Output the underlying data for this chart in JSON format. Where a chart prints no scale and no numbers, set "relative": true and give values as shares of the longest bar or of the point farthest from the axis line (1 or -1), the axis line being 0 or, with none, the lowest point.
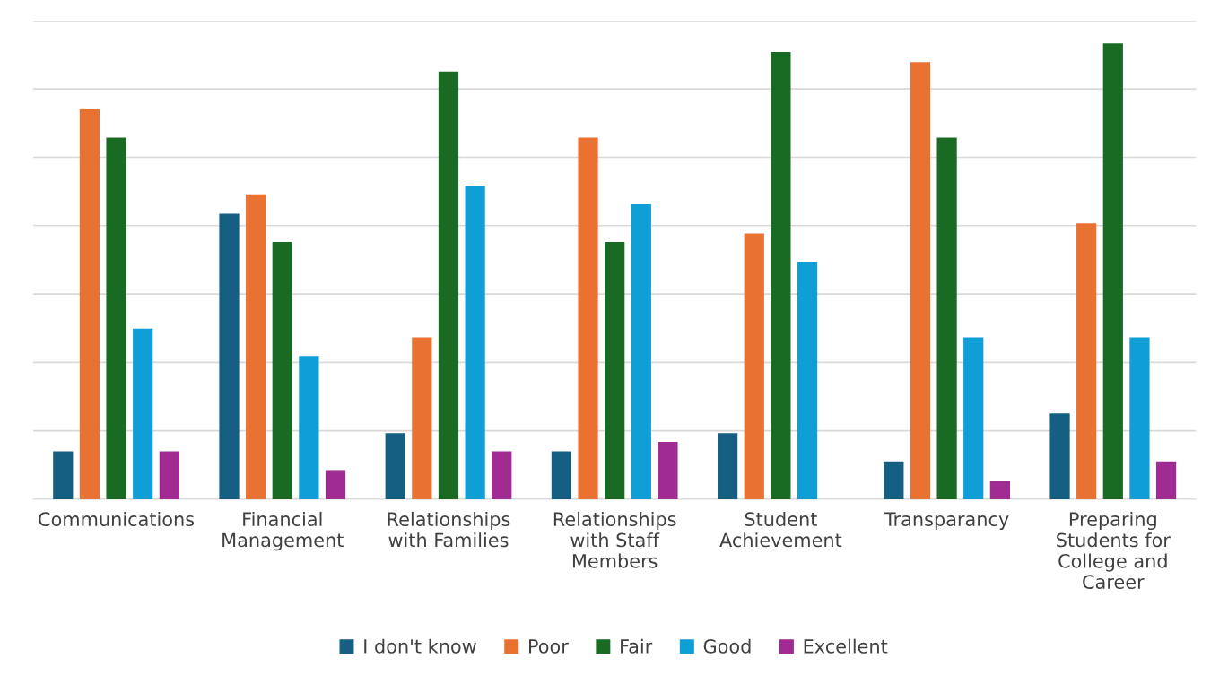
{
  "chart_data": {
    "type": "bar",
    "relative": true,
    "grid": "y",
    "legend": "bottom",
    "categories": [
      "Communications",
      "Financial Management",
      "Relationships with Families",
      "Relationships with Staff Members",
      "Student Achievement",
      "Transparancy",
      "Preparing Students for College and Career"
    ],
    "series": [
      {
        "name": "I don't know",
        "color": "#156082",
        "values": [
          0.105,
          0.626,
          0.145,
          0.105,
          0.145,
          0.083,
          0.188
        ]
      },
      {
        "name": "Poor",
        "color": "#e97132",
        "values": [
          0.855,
          0.669,
          0.355,
          0.793,
          0.583,
          0.959,
          0.605
        ]
      },
      {
        "name": "Fair",
        "color": "#196b24",
        "values": [
          0.793,
          0.564,
          0.938,
          0.564,
          0.981,
          0.793,
          1
        ]
      },
      {
        "name": "Good",
        "color": "#0f9ed5",
        "values": [
          0.374,
          0.314,
          0.688,
          0.647,
          0.521,
          0.355,
          0.355
        ]
      },
      {
        "name": "Excellent",
        "color": "#a02b93",
        "values": [
          0.105,
          0.064,
          0.105,
          0.126,
          0,
          0.041,
          0.083
        ]
      }
    ]
  }
}
